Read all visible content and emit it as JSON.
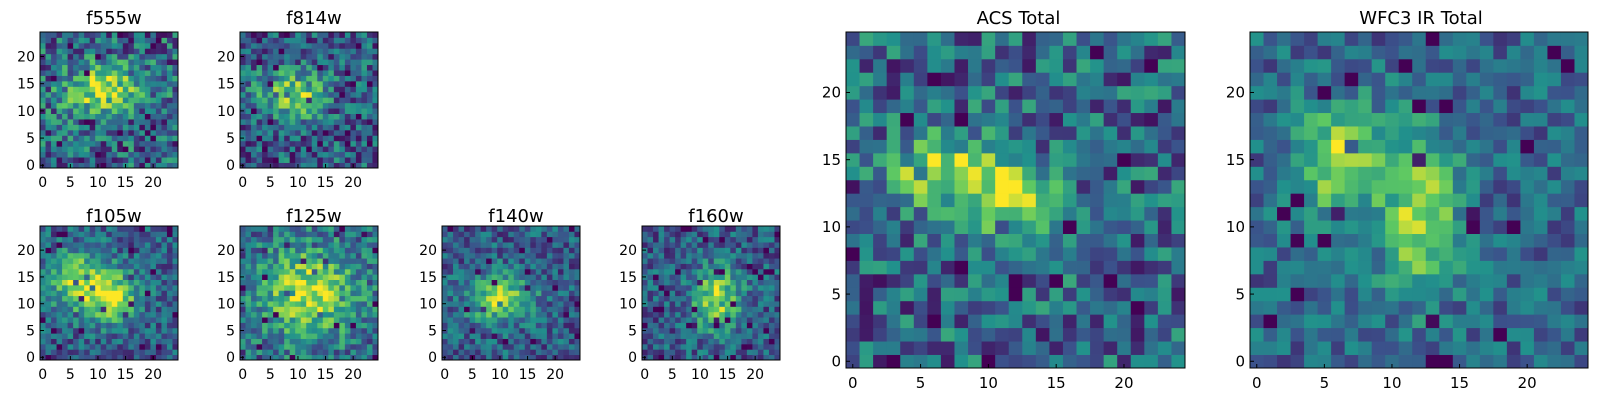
{
  "colormap": "viridis",
  "colors": {
    "frame": "#000000",
    "cmap_stops": [
      "#440154",
      "#3b528b",
      "#21918c",
      "#5ec962",
      "#fde725"
    ]
  },
  "titles": {
    "f555w": "f555w",
    "f814w": "f814w",
    "f105w": "f105w",
    "f125w": "f125w",
    "f140w": "f140w",
    "f160w": "f160w",
    "acs_total": "ACS Total",
    "wfc3_ir_total": "WFC3 IR Total"
  },
  "chart_data": [
    {
      "type": "heatmap",
      "id": "f555w",
      "title": "f555w",
      "grid": [
        25,
        25
      ],
      "xlim": [
        0,
        24
      ],
      "ylim": [
        0,
        24
      ],
      "xticks": [
        0,
        5,
        10,
        15,
        20
      ],
      "yticks": [
        0,
        5,
        10,
        15,
        20
      ],
      "yaxis_origin": "bottom",
      "peak": [
        {
          "x": 11,
          "y": 14,
          "sx": 5,
          "sy": 3
        }
      ],
      "noise": 0.5,
      "seed": 11,
      "base": 0.55
    },
    {
      "type": "heatmap",
      "id": "f814w",
      "title": "f814w",
      "grid": [
        25,
        25
      ],
      "xlim": [
        0,
        24
      ],
      "ylim": [
        0,
        24
      ],
      "xticks": [
        0,
        5,
        10,
        15,
        20
      ],
      "yticks": [
        0,
        5,
        10,
        15,
        20
      ],
      "yaxis_origin": "bottom",
      "peak": [
        {
          "x": 9,
          "y": 13,
          "sx": 4,
          "sy": 3
        }
      ],
      "noise": 0.45,
      "seed": 23,
      "base": 0.5
    },
    {
      "type": "heatmap",
      "id": "f105w",
      "title": "f105w",
      "grid": [
        25,
        25
      ],
      "xlim": [
        0,
        24
      ],
      "ylim": [
        0,
        24
      ],
      "xticks": [
        0,
        5,
        10,
        15,
        20
      ],
      "yticks": [
        0,
        5,
        10,
        15,
        20
      ],
      "yaxis_origin": "bottom",
      "peak": [
        {
          "x": 7,
          "y": 14,
          "sx": 4,
          "sy": 4
        },
        {
          "x": 13,
          "y": 11,
          "sx": 3,
          "sy": 3
        }
      ],
      "noise": 0.35,
      "seed": 37,
      "base": 0.5
    },
    {
      "type": "heatmap",
      "id": "f125w",
      "title": "f125w",
      "grid": [
        25,
        25
      ],
      "xlim": [
        0,
        24
      ],
      "ylim": [
        0,
        24
      ],
      "xticks": [
        0,
        5,
        10,
        15,
        20
      ],
      "yticks": [
        0,
        5,
        10,
        15,
        20
      ],
      "yaxis_origin": "bottom",
      "peak": [
        {
          "x": 12,
          "y": 12,
          "sx": 6,
          "sy": 6
        }
      ],
      "noise": 0.4,
      "seed": 41,
      "base": 0.55
    },
    {
      "type": "heatmap",
      "id": "f140w",
      "title": "f140w",
      "grid": [
        25,
        25
      ],
      "xlim": [
        0,
        24
      ],
      "ylim": [
        0,
        24
      ],
      "xticks": [
        0,
        5,
        10,
        15,
        20
      ],
      "yticks": [
        0,
        5,
        10,
        15,
        20
      ],
      "yaxis_origin": "bottom",
      "peak": [
        {
          "x": 10,
          "y": 11,
          "sx": 4,
          "sy": 3
        }
      ],
      "noise": 0.35,
      "seed": 53,
      "base": 0.5
    },
    {
      "type": "heatmap",
      "id": "f160w",
      "title": "f160w",
      "grid": [
        25,
        25
      ],
      "xlim": [
        0,
        24
      ],
      "ylim": [
        0,
        24
      ],
      "xticks": [
        0,
        5,
        10,
        15,
        20
      ],
      "yticks": [
        0,
        5,
        10,
        15,
        20
      ],
      "yaxis_origin": "bottom",
      "peak": [
        {
          "x": 13,
          "y": 11,
          "sx": 3,
          "sy": 4
        }
      ],
      "noise": 0.35,
      "seed": 67,
      "base": 0.5
    },
    {
      "type": "heatmap",
      "id": "acs_total",
      "title": "ACS Total",
      "grid": [
        25,
        25
      ],
      "xlim": [
        0,
        24
      ],
      "ylim": [
        0,
        24
      ],
      "xticks": [
        0,
        5,
        10,
        15,
        20
      ],
      "yticks": [
        0,
        5,
        10,
        15,
        20
      ],
      "yaxis_origin": "bottom",
      "peak": [
        {
          "x": 7,
          "y": 14,
          "sx": 3,
          "sy": 2
        },
        {
          "x": 12,
          "y": 12,
          "sx": 2,
          "sy": 2
        }
      ],
      "noise": 0.45,
      "seed": 79,
      "base": 0.55
    },
    {
      "type": "heatmap",
      "id": "wfc3_ir_total",
      "title": "WFC3 IR Total",
      "grid": [
        25,
        25
      ],
      "xlim": [
        0,
        24
      ],
      "ylim": [
        0,
        24
      ],
      "xticks": [
        0,
        5,
        10,
        15,
        20
      ],
      "yticks": [
        0,
        5,
        10,
        15,
        20
      ],
      "yaxis_origin": "bottom",
      "peak": [
        {
          "x": 6,
          "y": 15,
          "sx": 2,
          "sy": 3
        },
        {
          "x": 12,
          "y": 11,
          "sx": 2,
          "sy": 4
        }
      ],
      "noise": 0.3,
      "seed": 97,
      "base": 0.55
    }
  ]
}
